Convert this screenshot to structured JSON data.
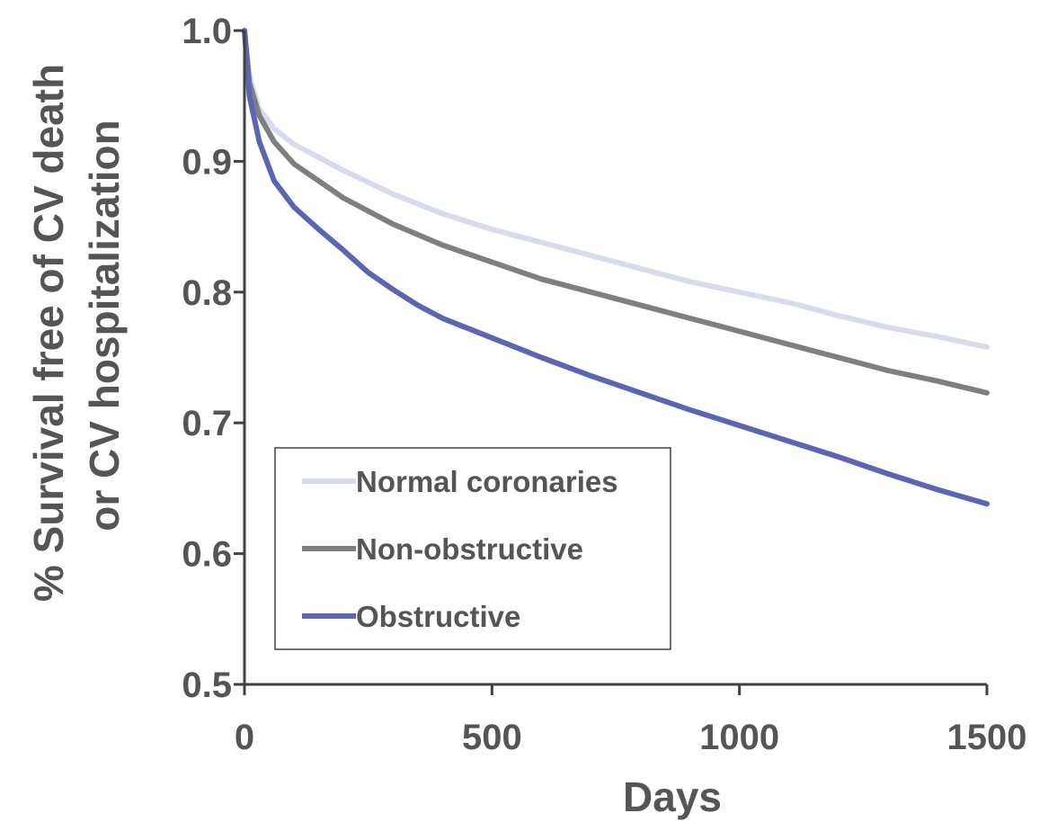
{
  "chart_data": {
    "type": "line",
    "title": "",
    "xlabel": "Days",
    "ylabel_lines": [
      "% Survival free of CV death",
      "or CV hospitalization"
    ],
    "xlim": [
      0,
      1500
    ],
    "ylim": [
      0.5,
      1.0
    ],
    "xticks": [
      "0",
      "500",
      "1000",
      "1500"
    ],
    "yticks": [
      "0.5",
      "0.6",
      "0.7",
      "0.8",
      "0.9",
      "1.0"
    ],
    "grid": false,
    "legend_position": "bottom-left",
    "series": [
      {
        "name": "Normal coronaries",
        "color": "#d8dbee",
        "x": [
          0,
          10,
          30,
          60,
          100,
          150,
          200,
          300,
          400,
          500,
          600,
          700,
          800,
          900,
          1000,
          1100,
          1200,
          1300,
          1400,
          1500
        ],
        "y": [
          1.0,
          0.965,
          0.94,
          0.925,
          0.913,
          0.903,
          0.893,
          0.875,
          0.86,
          0.848,
          0.838,
          0.828,
          0.818,
          0.808,
          0.8,
          0.792,
          0.782,
          0.773,
          0.766,
          0.758
        ]
      },
      {
        "name": "Non-obstructive",
        "color": "#7f7f7f",
        "x": [
          0,
          10,
          30,
          60,
          100,
          150,
          200,
          300,
          400,
          500,
          600,
          700,
          800,
          900,
          1000,
          1100,
          1200,
          1300,
          1400,
          1500
        ],
        "y": [
          1.0,
          0.96,
          0.935,
          0.915,
          0.898,
          0.885,
          0.872,
          0.852,
          0.836,
          0.823,
          0.81,
          0.8,
          0.79,
          0.78,
          0.77,
          0.76,
          0.75,
          0.74,
          0.732,
          0.723
        ]
      },
      {
        "name": "Obstructive",
        "color": "#5b66b3",
        "x": [
          0,
          10,
          30,
          60,
          100,
          150,
          200,
          250,
          300,
          350,
          400,
          500,
          600,
          700,
          800,
          900,
          1000,
          1100,
          1200,
          1300,
          1400,
          1500
        ],
        "y": [
          1.0,
          0.95,
          0.915,
          0.885,
          0.865,
          0.848,
          0.832,
          0.815,
          0.802,
          0.79,
          0.78,
          0.765,
          0.75,
          0.736,
          0.723,
          0.71,
          0.698,
          0.686,
          0.674,
          0.661,
          0.649,
          0.638
        ]
      }
    ]
  }
}
